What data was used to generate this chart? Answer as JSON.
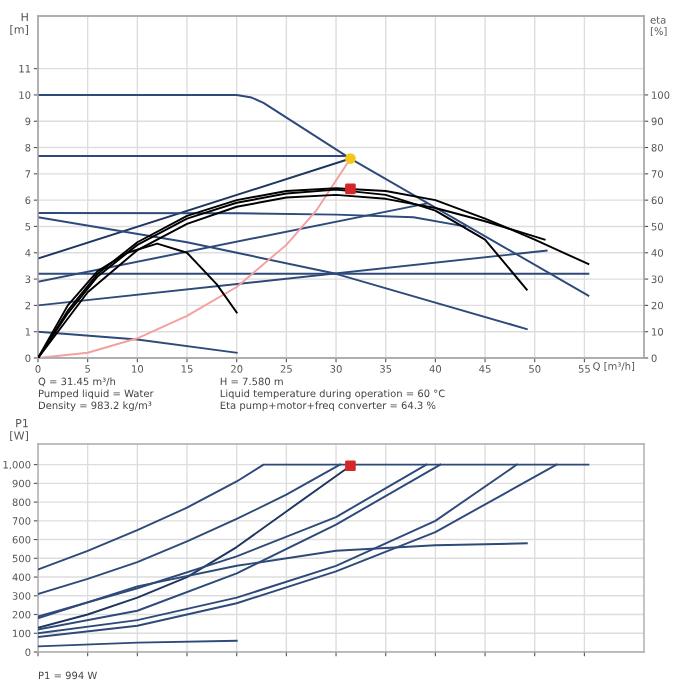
{
  "chart_data": [
    {
      "type": "line",
      "ylabel": "H\n[m]",
      "y2label": "eta\n[%]",
      "xlabel": "Q [m³/h]",
      "xlim": [
        0,
        61
      ],
      "xticks": [
        0,
        5,
        10,
        15,
        20,
        25,
        30,
        35,
        40,
        45,
        50,
        55
      ],
      "ylim": [
        0,
        13
      ],
      "yticks": [
        0,
        1,
        2,
        3,
        4,
        5,
        6,
        7,
        8,
        9,
        10,
        11
      ],
      "y2lim": [
        0,
        130
      ],
      "y2ticks": [
        0,
        10,
        20,
        30,
        40,
        50,
        60,
        70,
        80,
        90,
        100
      ],
      "grid": true,
      "legend": false,
      "line_style": "solid",
      "annotations": [
        "Q = 31.45 m³/h",
        "Pumped liquid = Water",
        "Density = 983.2 kg/m³",
        "H = 7.580 m",
        "Liquid temperature during operation = 60 °C",
        "Eta pump+motor+freq converter = 64.3 %"
      ],
      "series": [
        {
          "color": "#2e4a7a",
          "x": [
            0,
            20,
            21.5,
            22.7,
            31.45,
            55.4
          ],
          "values": [
            10,
            10,
            9.9,
            9.7,
            7.58,
            2.37
          ]
        },
        {
          "color": "#2e4a7a",
          "x": [
            0,
            31.45
          ],
          "values": [
            7.68,
            7.68
          ]
        },
        {
          "color": "#1f3560",
          "x": [
            0,
            31.45
          ],
          "values": [
            3.78,
            7.58
          ]
        },
        {
          "color": "#2e4a7a",
          "x": [
            0,
            20,
            30,
            37.8,
            43
          ],
          "values": [
            5.51,
            5.5,
            5.45,
            5.35,
            5.0
          ]
        },
        {
          "color": "#2e4a7a",
          "x": [
            0,
            15,
            30,
            49.2
          ],
          "values": [
            5.35,
            4.4,
            3.2,
            1.1
          ]
        },
        {
          "color": "#2e4a7a",
          "x": [
            0,
            39.1
          ],
          "values": [
            2.9,
            5.87
          ]
        },
        {
          "color": "#2e4a7a",
          "x": [
            0,
            51.2
          ],
          "values": [
            2.0,
            4.08
          ]
        },
        {
          "color": "#2e4a7a",
          "x": [
            0,
            55.4
          ],
          "values": [
            3.2,
            3.2
          ]
        },
        {
          "color": "#2e4a7a",
          "x": [
            0,
            10,
            20
          ],
          "values": [
            1.0,
            0.7,
            0.2
          ]
        },
        {
          "color": "#000000",
          "axis": "y2",
          "x": [
            0,
            3,
            6,
            10,
            15,
            20,
            25,
            30,
            35,
            40,
            45,
            50,
            55.4
          ],
          "values": [
            0,
            18,
            32,
            44,
            54,
            60,
            63.5,
            64.5,
            63.5,
            60,
            53,
            45,
            35.7
          ]
        },
        {
          "color": "#000000",
          "axis": "y2",
          "x": [
            0,
            3,
            6,
            10,
            15,
            20,
            25,
            30,
            35,
            40,
            45,
            49.2
          ],
          "values": [
            0,
            17,
            31,
            43,
            53,
            59,
            62.5,
            64,
            62,
            56,
            45,
            26
          ]
        },
        {
          "color": "#000000",
          "axis": "y2",
          "x": [
            0,
            5,
            10,
            15,
            20,
            25,
            30,
            35,
            40,
            45,
            51
          ],
          "values": [
            0,
            25,
            41,
            51,
            57.5,
            61,
            62,
            60.5,
            57,
            52,
            45
          ]
        },
        {
          "color": "#000000",
          "axis": "y2",
          "x": [
            0,
            3,
            6,
            9,
            12,
            15,
            18,
            20
          ],
          "values": [
            0,
            20,
            33,
            40,
            43.5,
            40,
            28,
            17.3
          ]
        },
        {
          "color": "#f4a0a0",
          "x": [
            0,
            5,
            10,
            15,
            20,
            25,
            28,
            31.45
          ],
          "values": [
            0,
            0.2,
            0.75,
            1.6,
            2.7,
            4.3,
            5.6,
            7.58
          ]
        },
        {
          "type": "scatter",
          "color": "#f5c518",
          "marker": "circle",
          "x": [
            31.45
          ],
          "values": [
            7.58
          ]
        },
        {
          "type": "scatter",
          "color": "#d62728",
          "marker": "square",
          "axis": "y2",
          "x": [
            31.45
          ],
          "values": [
            64.3
          ]
        }
      ]
    },
    {
      "type": "line",
      "ylabel": "P1\n[W]",
      "xlim": [
        0,
        61
      ],
      "tick_labels": "y",
      "ylim": [
        0,
        1110
      ],
      "yticks": [
        0,
        100,
        200,
        300,
        400,
        500,
        600,
        700,
        800,
        900,
        {
          "value": 1000,
          "label": "1,000"
        }
      ],
      "grid": true,
      "legend": false,
      "line_style": "solid",
      "annotations": [
        "P1 = 994 W"
      ],
      "series": [
        {
          "color": "#2e4a7a",
          "x": [
            0,
            5,
            10,
            15,
            20,
            22.7,
            55.4
          ],
          "values": [
            440,
            540,
            650,
            770,
            910,
            1000,
            1000
          ]
        },
        {
          "color": "#2e4a7a",
          "x": [
            0,
            5,
            10,
            15,
            20,
            25,
            30.4
          ],
          "values": [
            310,
            390,
            480,
            590,
            710,
            840,
            1000
          ]
        },
        {
          "color": "#1f3560",
          "x": [
            0,
            5,
            10,
            15,
            20,
            25,
            31.45
          ],
          "values": [
            130,
            200,
            290,
            400,
            560,
            750,
            994
          ]
        },
        {
          "color": "#2e4a7a",
          "x": [
            0,
            10,
            20,
            30,
            39.1
          ],
          "values": [
            190,
            340,
            510,
            720,
            1000
          ]
        },
        {
          "color": "#2e4a7a",
          "x": [
            0,
            10,
            20,
            30,
            40.5
          ],
          "values": [
            120,
            220,
            420,
            680,
            1000
          ]
        },
        {
          "color": "#2e4a7a",
          "x": [
            0,
            10,
            20,
            30,
            40,
            48.2
          ],
          "values": [
            100,
            170,
            290,
            460,
            700,
            1000
          ]
        },
        {
          "color": "#2e4a7a",
          "x": [
            0,
            10,
            20,
            30,
            40,
            52.2
          ],
          "values": [
            80,
            140,
            260,
            430,
            640,
            1000
          ]
        },
        {
          "color": "#2e4a7a",
          "x": [
            0,
            10,
            20,
            30,
            40,
            49.2
          ],
          "values": [
            180,
            350,
            460,
            540,
            570,
            580
          ]
        },
        {
          "color": "#2e4a7a",
          "x": [
            0,
            10,
            20
          ],
          "values": [
            30,
            50,
            60
          ]
        },
        {
          "type": "scatter",
          "color": "#d62728",
          "marker": "square",
          "x": [
            31.45
          ],
          "values": [
            994
          ]
        }
      ]
    }
  ]
}
